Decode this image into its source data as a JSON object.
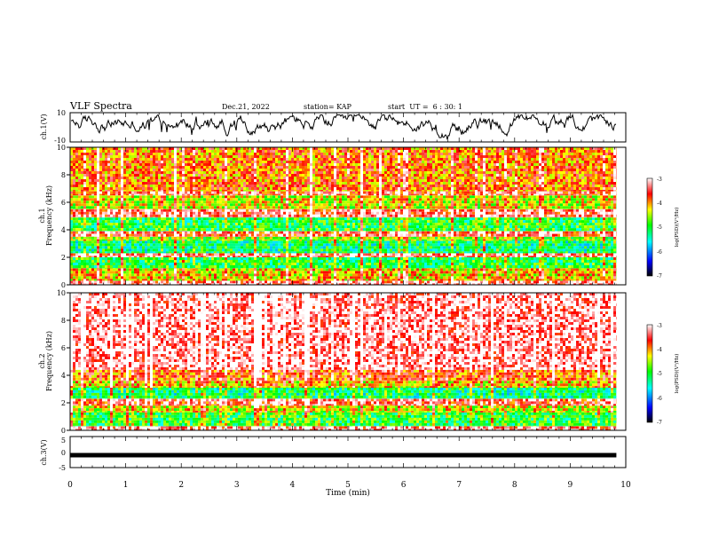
{
  "header": {
    "title": "VLF Spectra",
    "date": "Dec.21, 2022",
    "station": "station= KAP",
    "start": "start  UT =  6 : 30: 1"
  },
  "chart_data": [
    {
      "type": "line",
      "panel": "ch1-waveform",
      "ylabel": "ch.1(V)",
      "ylim": [
        -10,
        10
      ],
      "yticks": [
        "10",
        "-10"
      ],
      "x_range_min": [
        0,
        9.83
      ],
      "description_of_series": "noisy voltage trace fluctuating mostly between -5 and 8 V"
    },
    {
      "type": "heatmap",
      "panel": "ch1-spectrogram",
      "ylabel_top": "ch.1",
      "ylabel": "Frequency (kHz)",
      "ylim": [
        0,
        10
      ],
      "yticks": [
        "0",
        "2",
        "4",
        "6",
        "8",
        "10"
      ],
      "colorbar": {
        "label": "log(PSD)(V²/Hz)",
        "range": [
          -7,
          -3
        ],
        "ticks": [
          "-3",
          "-4",
          "-5",
          "-6",
          "-7"
        ]
      },
      "bands_khz": [
        {
          "from": 0,
          "to": 0.3,
          "level": -3.3
        },
        {
          "from": 0.3,
          "to": 1.2,
          "level": -4.2
        },
        {
          "from": 1.2,
          "to": 2.0,
          "level": -5.0
        },
        {
          "from": 2.0,
          "to": 2.3,
          "level": -3.4
        },
        {
          "from": 2.3,
          "to": 3.2,
          "level": -5.2
        },
        {
          "from": 3.2,
          "to": 3.5,
          "level": -4.6
        },
        {
          "from": 3.5,
          "to": 3.9,
          "level": -3.5
        },
        {
          "from": 3.9,
          "to": 4.9,
          "level": -5.0
        },
        {
          "from": 4.9,
          "to": 5.5,
          "level": -3.4
        },
        {
          "from": 5.5,
          "to": 6.5,
          "level": -4.4
        },
        {
          "from": 6.5,
          "to": 6.8,
          "level": -3.5
        },
        {
          "from": 6.8,
          "to": 10,
          "level": -3.9
        }
      ]
    },
    {
      "type": "heatmap",
      "panel": "ch2-spectrogram",
      "ylabel_top": "ch.2",
      "ylabel": "Frequency (kHz)",
      "ylim": [
        0,
        10
      ],
      "yticks": [
        "0",
        "2",
        "4",
        "6",
        "8",
        "10"
      ],
      "colorbar": {
        "label": "log(PSD)(V²/Hz)",
        "range": [
          -7,
          -3
        ],
        "ticks": [
          "-3",
          "-4",
          "-5",
          "-6",
          "-7"
        ]
      },
      "bands_khz": [
        {
          "from": 0,
          "to": 0.3,
          "level": -3.3
        },
        {
          "from": 0.3,
          "to": 1.3,
          "level": -5.0
        },
        {
          "from": 1.3,
          "to": 1.8,
          "level": -4.4
        },
        {
          "from": 1.8,
          "to": 2.3,
          "level": -3.5
        },
        {
          "from": 2.3,
          "to": 3.1,
          "level": -5.2
        },
        {
          "from": 3.1,
          "to": 3.6,
          "level": -4.2
        },
        {
          "from": 3.6,
          "to": 4.4,
          "level": -3.8
        },
        {
          "from": 4.4,
          "to": 10,
          "level": -3.2
        }
      ]
    },
    {
      "type": "line",
      "panel": "ch3-waveform",
      "ylabel": "ch.3(V)",
      "ylim": [
        -5,
        5
      ],
      "yticks": [
        "5",
        "0",
        "-5"
      ],
      "constant_value": -1,
      "xlabel": "Time (min)",
      "xlim": [
        0,
        10
      ],
      "xticks": [
        "0",
        "1",
        "2",
        "3",
        "4",
        "5",
        "6",
        "7",
        "8",
        "9",
        "10"
      ]
    }
  ],
  "colors": {
    "colormap": [
      "#000000",
      "#0000ff",
      "#00ffff",
      "#00ff00",
      "#ffff00",
      "#ff0000",
      "#ffffff"
    ]
  }
}
